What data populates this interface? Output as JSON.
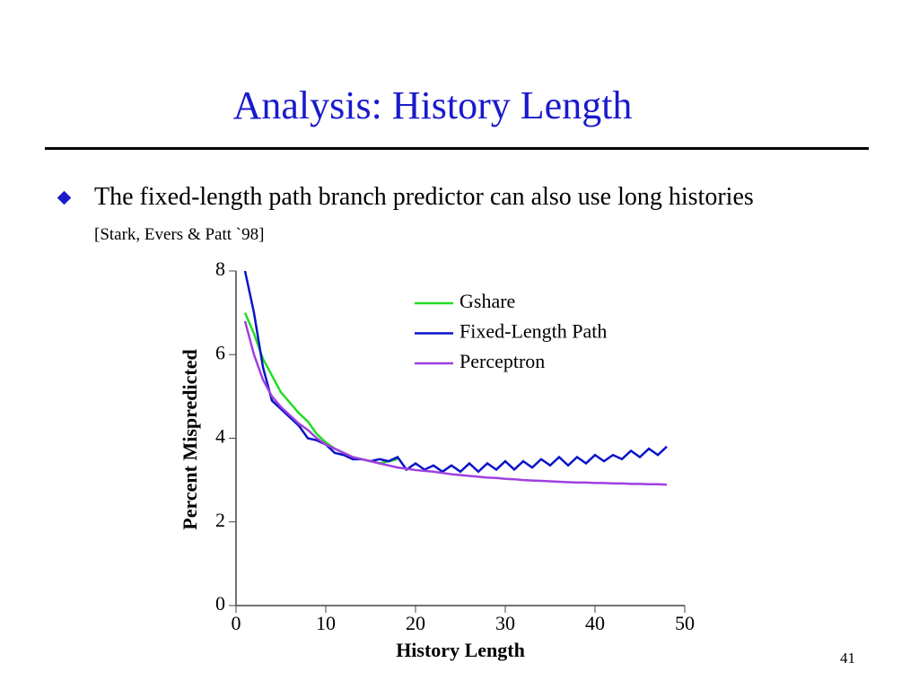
{
  "slide": {
    "title": "Analysis: History Length",
    "bullet": {
      "text": "The fixed-length path branch predictor can also use long histories",
      "citation": "[Stark, Evers & Patt `98]"
    },
    "page_number": "41"
  },
  "chart_data": {
    "type": "line",
    "x_label": "History Length",
    "y_label": "Percent Mispredicted",
    "x": [
      1,
      2,
      3,
      4,
      5,
      6,
      7,
      8,
      9,
      10,
      11,
      12,
      13,
      14,
      15,
      16,
      17,
      18,
      19,
      20,
      21,
      22,
      23,
      24,
      25,
      26,
      27,
      28,
      29,
      30,
      31,
      32,
      33,
      34,
      35,
      36,
      37,
      38,
      39,
      40,
      41,
      42,
      43,
      44,
      45,
      46,
      47,
      48
    ],
    "series": [
      {
        "name": "Gshare",
        "color": "#22dd22",
        "values": [
          7.0,
          6.5,
          5.9,
          5.5,
          5.1,
          4.85,
          4.6,
          4.4,
          4.1,
          3.9,
          3.75,
          3.65,
          3.55,
          3.5,
          3.45,
          3.4,
          3.45,
          3.5,
          null,
          null,
          null,
          null,
          null,
          null,
          null,
          null,
          null,
          null,
          null,
          null,
          null,
          null,
          null,
          null,
          null,
          null,
          null,
          null,
          null,
          null,
          null,
          null,
          null,
          null,
          null,
          null,
          null,
          null
        ]
      },
      {
        "name": "Fixed-Length Path",
        "color": "#0a14c8",
        "values": [
          8.0,
          7.0,
          5.7,
          4.9,
          4.7,
          4.5,
          4.3,
          4.0,
          3.95,
          3.85,
          3.65,
          3.6,
          3.5,
          3.5,
          3.45,
          3.5,
          3.45,
          3.55,
          3.25,
          3.4,
          3.25,
          3.35,
          3.2,
          3.35,
          3.2,
          3.4,
          3.2,
          3.4,
          3.25,
          3.45,
          3.25,
          3.45,
          3.3,
          3.5,
          3.35,
          3.55,
          3.35,
          3.55,
          3.4,
          3.6,
          3.45,
          3.6,
          3.5,
          3.7,
          3.55,
          3.75,
          3.6,
          3.8
        ]
      },
      {
        "name": "Perceptron",
        "color": "#a040e0",
        "values": [
          6.8,
          6.0,
          5.4,
          5.0,
          4.75,
          4.55,
          4.35,
          4.2,
          4.0,
          3.85,
          3.75,
          3.65,
          3.55,
          3.5,
          3.45,
          3.4,
          3.35,
          3.3,
          3.27,
          3.24,
          3.22,
          3.2,
          3.17,
          3.14,
          3.12,
          3.1,
          3.08,
          3.06,
          3.05,
          3.03,
          3.02,
          3.0,
          2.99,
          2.98,
          2.97,
          2.96,
          2.95,
          2.94,
          2.94,
          2.93,
          2.93,
          2.92,
          2.92,
          2.91,
          2.91,
          2.9,
          2.9,
          2.89
        ]
      }
    ],
    "xlim": [
      0,
      50
    ],
    "xticks": [
      0,
      10,
      20,
      30,
      40,
      50
    ],
    "ylim": [
      0,
      8
    ],
    "yticks": [
      0,
      2,
      4,
      6,
      8
    ],
    "grid": false,
    "legend": "top-right"
  }
}
